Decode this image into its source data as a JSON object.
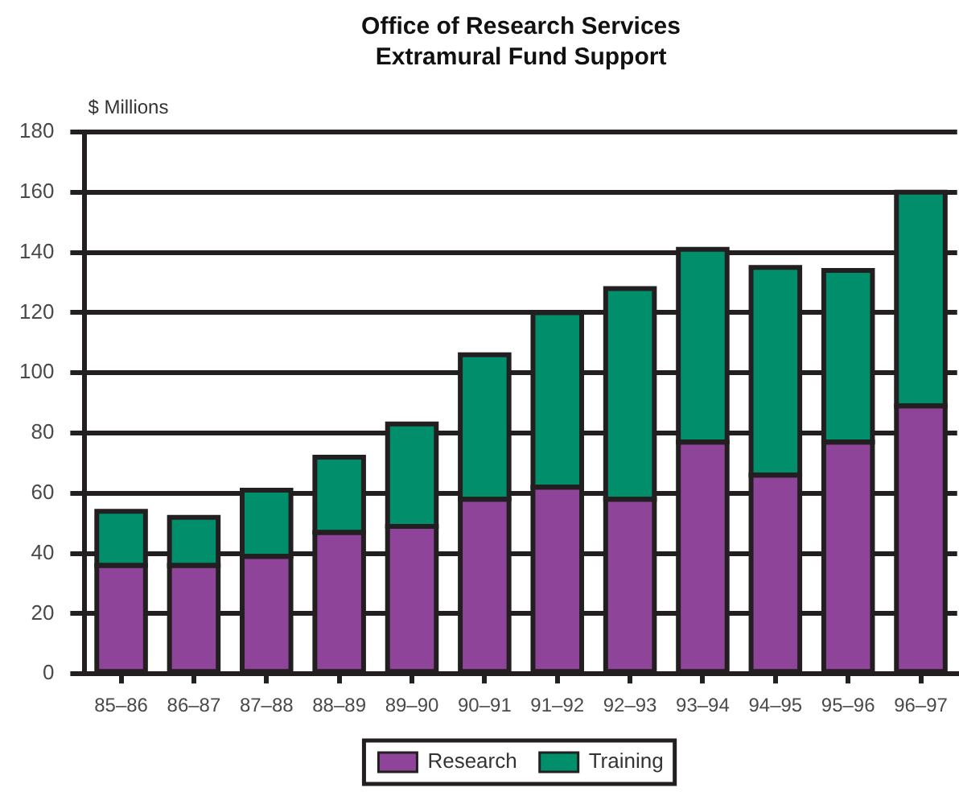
{
  "chart_data": {
    "type": "bar",
    "title": "Office of Research Services",
    "subtitle": "Extramural Fund Support",
    "ylabel": "$ Millions",
    "categories": [
      "85–86",
      "86–87",
      "87–88",
      "88–89",
      "89–90",
      "90–91",
      "91–92",
      "92–93",
      "93–94",
      "94–95",
      "95–96",
      "96–97"
    ],
    "series": [
      {
        "name": "Research",
        "color": "#8e4498",
        "values": [
          36,
          36,
          39,
          47,
          49,
          58,
          62,
          58,
          77,
          66,
          77,
          89
        ]
      },
      {
        "name": "Training",
        "color": "#008f6a",
        "values": [
          18,
          16,
          22,
          25,
          34,
          48,
          58,
          70,
          64,
          69,
          57,
          71
        ]
      }
    ],
    "stacked": true,
    "ylim": [
      0,
      180
    ],
    "yticks": [
      0,
      20,
      40,
      60,
      80,
      100,
      120,
      140,
      160,
      180
    ],
    "grid": "y",
    "legend": "bottom"
  }
}
